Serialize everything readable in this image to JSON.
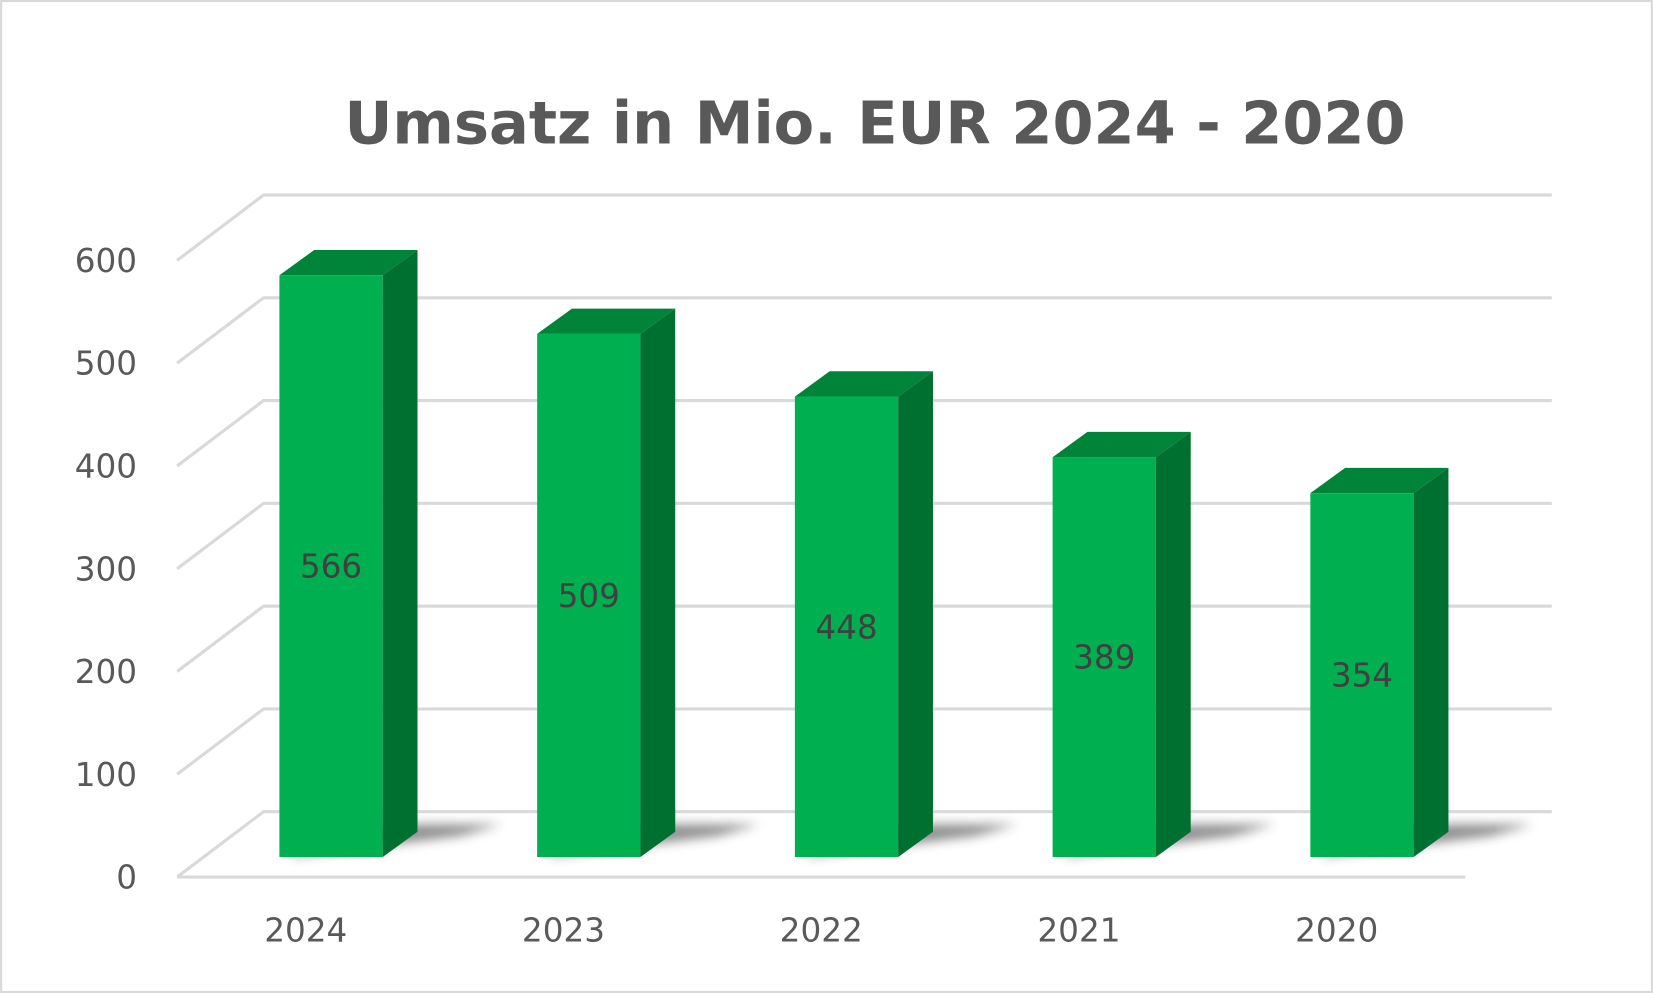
{
  "chart_data": {
    "type": "bar",
    "style": "3d-column",
    "title": "Umsatz in Mio. EUR 2024 - 2020",
    "xlabel": "",
    "ylabel": "",
    "categories": [
      "2024",
      "2023",
      "2022",
      "2021",
      "2020"
    ],
    "values": [
      566,
      509,
      448,
      389,
      354
    ],
    "data_labels": [
      "566",
      "509",
      "448",
      "389",
      "354"
    ],
    "ylim": [
      0,
      600
    ],
    "yticks": [
      "0",
      "100",
      "200",
      "300",
      "400",
      "500",
      "600"
    ],
    "grid": true,
    "legend": "none",
    "colors": {
      "front": "#00B050",
      "top": "#00843A",
      "side": "#007030",
      "grid": "#D9D9D9",
      "text": "#595959",
      "label": "#404040"
    }
  }
}
